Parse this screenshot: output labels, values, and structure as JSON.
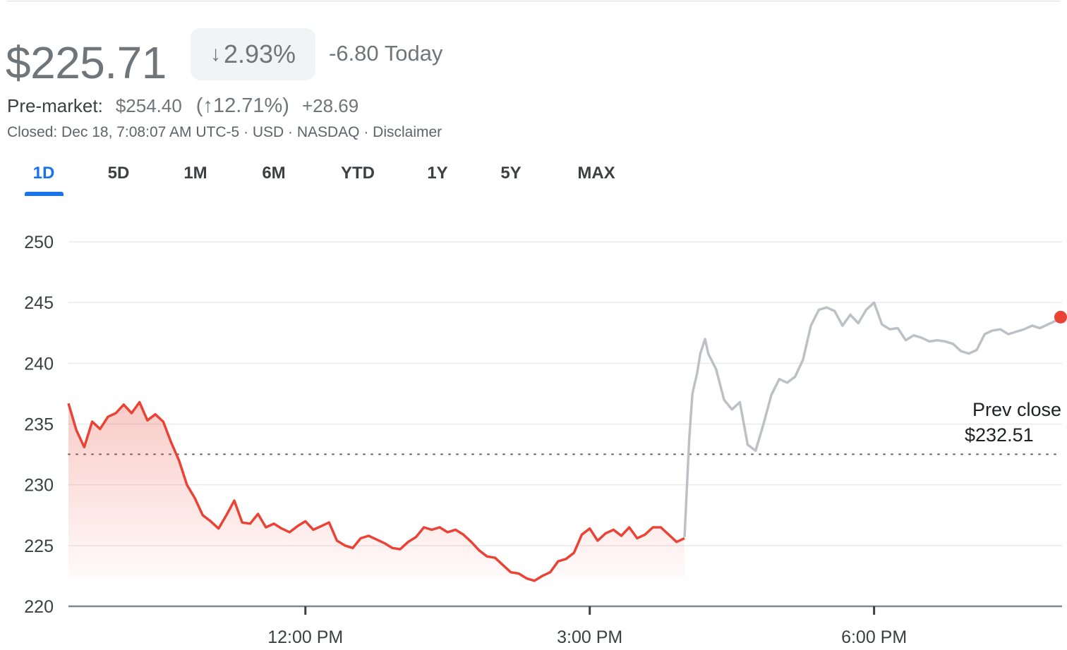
{
  "header": {
    "price": "$225.71",
    "change_pct": "2.93%",
    "change_arrow_icon": "arrow-down-icon",
    "change_today": "-6.80 Today"
  },
  "premarket": {
    "label": "Pre-market:",
    "price": "$254.40",
    "pct": "(↑12.71%)",
    "abs": "+28.69"
  },
  "status_line": "Closed: Dec 18, 7:08:07 AM UTC-5 · USD · NASDAQ · Disclaimer",
  "tabs": [
    {
      "label": "1D",
      "active": true
    },
    {
      "label": "5D",
      "active": false
    },
    {
      "label": "1M",
      "active": false
    },
    {
      "label": "6M",
      "active": false
    },
    {
      "label": "YTD",
      "active": false
    },
    {
      "label": "1Y",
      "active": false
    },
    {
      "label": "5Y",
      "active": false
    },
    {
      "label": "MAX",
      "active": false
    }
  ],
  "colors": {
    "regular_line": "#ea4335",
    "extended_line": "#bdc1c6",
    "accent": "#1a73e8",
    "endpoint": "#ea4335"
  },
  "chart_data": {
    "type": "line",
    "ylim": [
      220,
      250
    ],
    "yticks": [
      "250",
      "245",
      "240",
      "235",
      "230",
      "225",
      "220"
    ],
    "ytick_values": [
      250,
      245,
      240,
      235,
      230,
      225,
      220
    ],
    "xlim": [
      "9:30",
      "19:59"
    ],
    "xticks": [
      "12:00 PM",
      "3:00 PM",
      "6:00 PM"
    ],
    "xtick_values": [
      "12:00",
      "15:00",
      "18:00"
    ],
    "prev_close": {
      "label": "Prev close",
      "value_label": "$232.51",
      "value": 232.51
    },
    "grid": true,
    "series": [
      {
        "session": "regular",
        "x": [
          "9:30",
          "9:35",
          "9:40",
          "9:45",
          "9:50",
          "9:55",
          "10:00",
          "10:05",
          "10:10",
          "10:15",
          "10:20",
          "10:25",
          "10:30",
          "10:35",
          "10:40",
          "10:45",
          "10:50",
          "10:55",
          "11:00",
          "11:05",
          "11:10",
          "11:15",
          "11:20",
          "11:25",
          "11:30",
          "11:35",
          "11:40",
          "11:45",
          "11:50",
          "11:55",
          "12:00",
          "12:05",
          "12:10",
          "12:15",
          "12:20",
          "12:25",
          "12:30",
          "12:35",
          "12:40",
          "12:45",
          "12:50",
          "12:55",
          "13:00",
          "13:05",
          "13:10",
          "13:15",
          "13:20",
          "13:25",
          "13:30",
          "13:35",
          "13:40",
          "13:45",
          "13:50",
          "13:55",
          "14:00",
          "14:05",
          "14:10",
          "14:15",
          "14:20",
          "14:25",
          "14:30",
          "14:35",
          "14:40",
          "14:45",
          "14:50",
          "14:55",
          "15:00",
          "15:05",
          "15:10",
          "15:15",
          "15:20",
          "15:25",
          "15:30",
          "15:35",
          "15:40",
          "15:45",
          "15:50",
          "15:55",
          "16:00"
        ],
        "y": [
          236.7,
          234.5,
          233.1,
          235.2,
          234.6,
          235.6,
          235.9,
          236.6,
          235.9,
          236.8,
          235.3,
          235.8,
          235.2,
          233.5,
          232.0,
          230.0,
          228.9,
          227.5,
          227.0,
          226.4,
          227.5,
          228.7,
          226.9,
          226.8,
          227.6,
          226.5,
          226.8,
          226.4,
          226.1,
          226.6,
          227.0,
          226.3,
          226.6,
          226.9,
          225.4,
          225.0,
          224.8,
          225.6,
          225.8,
          225.5,
          225.2,
          224.8,
          224.7,
          225.3,
          225.7,
          226.5,
          226.3,
          226.5,
          226.1,
          226.3,
          225.9,
          225.3,
          224.6,
          224.1,
          224.0,
          223.4,
          222.8,
          222.7,
          222.3,
          222.1,
          222.5,
          222.8,
          223.7,
          223.9,
          224.4,
          225.9,
          226.4,
          225.4,
          226.0,
          226.3,
          225.8,
          226.5,
          225.6,
          225.9,
          226.5,
          226.5,
          225.9,
          225.3,
          225.6
        ]
      },
      {
        "session": "after-hours",
        "x": [
          "16:00",
          "16:03",
          "16:05",
          "16:08",
          "16:10",
          "16:13",
          "16:15",
          "16:20",
          "16:25",
          "16:30",
          "16:35",
          "16:40",
          "16:45",
          "16:50",
          "16:55",
          "17:00",
          "17:05",
          "17:10",
          "17:15",
          "17:20",
          "17:25",
          "17:30",
          "17:35",
          "17:40",
          "17:45",
          "17:50",
          "17:55",
          "18:00",
          "18:05",
          "18:10",
          "18:15",
          "18:20",
          "18:25",
          "18:30",
          "18:35",
          "18:40",
          "18:45",
          "18:50",
          "18:55",
          "19:00",
          "19:05",
          "19:10",
          "19:15",
          "19:20",
          "19:25",
          "19:30",
          "19:35",
          "19:40",
          "19:45",
          "19:50",
          "19:55",
          "19:59"
        ],
        "y": [
          225.7,
          233.8,
          237.5,
          239.2,
          240.8,
          242.0,
          240.8,
          239.5,
          237.0,
          236.2,
          236.8,
          233.3,
          232.8,
          235.0,
          237.4,
          238.7,
          238.4,
          238.9,
          240.3,
          243.1,
          244.4,
          244.6,
          244.3,
          243.1,
          244.0,
          243.3,
          244.4,
          245.0,
          243.2,
          242.8,
          242.9,
          241.9,
          242.3,
          242.1,
          241.8,
          241.9,
          241.8,
          241.6,
          241.0,
          240.8,
          241.1,
          242.4,
          242.7,
          242.8,
          242.4,
          242.6,
          242.8,
          243.1,
          242.9,
          243.2,
          243.5,
          243.8
        ]
      }
    ]
  }
}
